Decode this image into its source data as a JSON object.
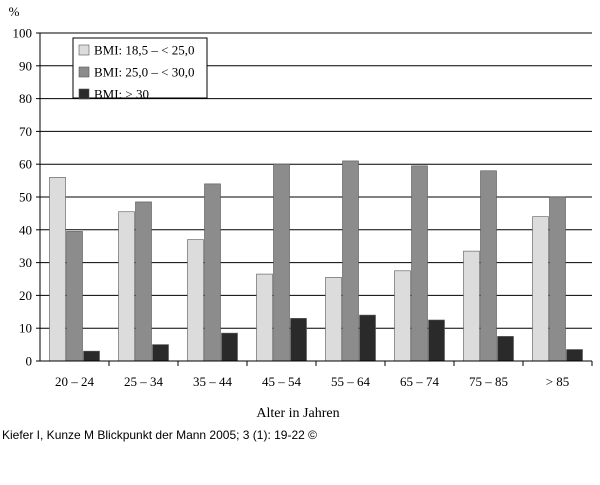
{
  "chart_data": {
    "type": "bar",
    "title": "",
    "xlabel": "Alter in Jahren",
    "ylabel": "%",
    "ylim": [
      0,
      100
    ],
    "yticks": [
      "0",
      "10",
      "20",
      "30",
      "40",
      "50",
      "60",
      "70",
      "80",
      "90",
      "100"
    ],
    "grid": "horizontal",
    "legend_position": "top-left",
    "categories": [
      "20 – 24",
      "25 – 34",
      "35 – 44",
      "45 – 54",
      "55 – 64",
      "65 – 74",
      "75 – 85",
      "> 85"
    ],
    "series": [
      {
        "name": "BMI: 18,5 – < 25,0",
        "color": "#dcdcdc",
        "values": [
          56,
          45.5,
          37,
          26.5,
          25.5,
          27.5,
          33.5,
          44
        ]
      },
      {
        "name": "BMI: 25,0 – < 30,0",
        "color": "#8c8c8c",
        "values": [
          39.5,
          48.5,
          54,
          60,
          61,
          59.5,
          58,
          50
        ]
      },
      {
        "name": "BMI: > 30",
        "color": "#2a2a2a",
        "values": [
          3,
          5,
          8.5,
          13,
          14,
          12.5,
          7.5,
          3.5
        ]
      }
    ]
  },
  "caption": "Kiefer I, Kunze M Blickpunkt der Mann 2005; 3 (1): 19-22 ©"
}
